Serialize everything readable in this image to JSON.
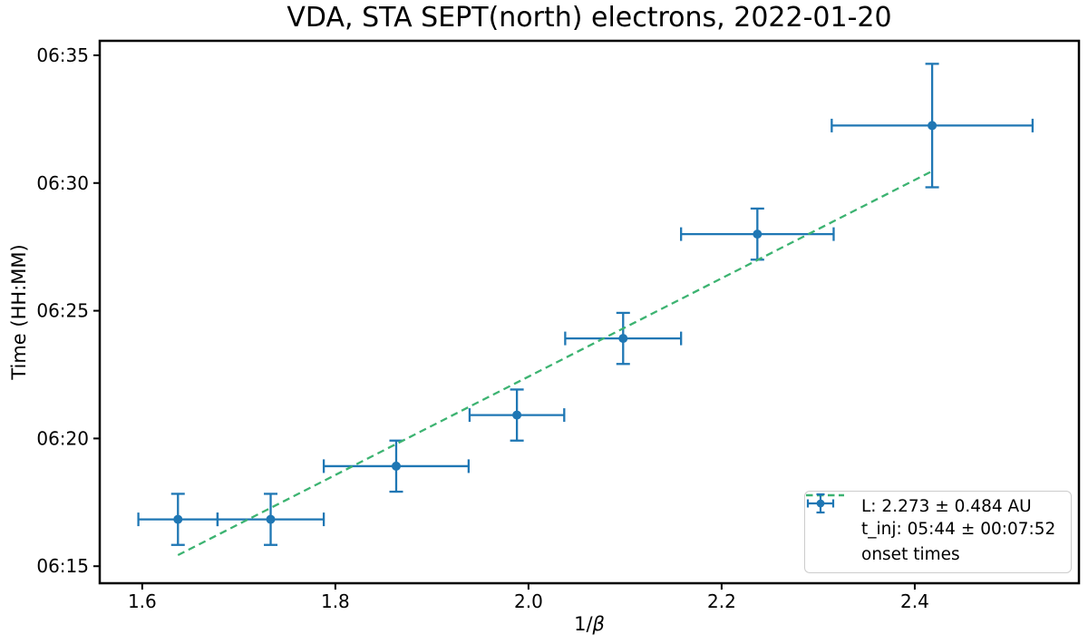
{
  "chart_data": {
    "type": "scatter",
    "title": "VDA, STA SEPT(north) electrons, 2022-01-20",
    "xlabel_prefix": "1/",
    "xlabel_symbol": "β",
    "ylabel": "Time (HH:MM)",
    "grid": false,
    "xlim": [
      1.556,
      2.57
    ],
    "ylim_time": [
      "06:14:20",
      "06:35:34"
    ],
    "x_ticks": [
      "1.6",
      "1.8",
      "2.0",
      "2.2",
      "2.4"
    ],
    "y_ticks": [
      "06:15",
      "06:20",
      "06:25",
      "06:30",
      "06:35"
    ],
    "series": [
      {
        "name": "onset times",
        "kind": "errorbar-scatter",
        "color": "#1f77b4",
        "points": [
          {
            "x": 1.637,
            "xerr": 0.041,
            "time": "06:16:50",
            "terr_s": 60
          },
          {
            "x": 1.733,
            "xerr": 0.055,
            "time": "06:16:50",
            "terr_s": 60
          },
          {
            "x": 1.863,
            "xerr": 0.075,
            "time": "06:18:55",
            "terr_s": 60
          },
          {
            "x": 1.988,
            "xerr": 0.049,
            "time": "06:20:55",
            "terr_s": 60
          },
          {
            "x": 2.098,
            "xerr": 0.06,
            "time": "06:23:55",
            "terr_s": 60
          },
          {
            "x": 2.237,
            "xerr": 0.079,
            "time": "06:28:00",
            "terr_s": 60
          },
          {
            "x": 2.418,
            "xerr": 0.104,
            "time": "06:32:15",
            "terr_s": 145
          }
        ]
      },
      {
        "name": "vda-fit",
        "kind": "dashed-line",
        "color": "#3cb371",
        "x1": 1.637,
        "t1": "06:15:26",
        "x2": 2.418,
        "t2": "06:30:28"
      }
    ],
    "legend": {
      "position": "lower right",
      "fit_line1": "L: 2.273 ± 0.484 AU",
      "fit_line2": "t_inj: 05:44 ± 00:07:52",
      "points_label": "onset times"
    },
    "colors": {
      "points": "#1f77b4",
      "fit": "#3cb371",
      "axis": "#000000",
      "legend_border": "#cccccc",
      "background": "#ffffff"
    }
  }
}
